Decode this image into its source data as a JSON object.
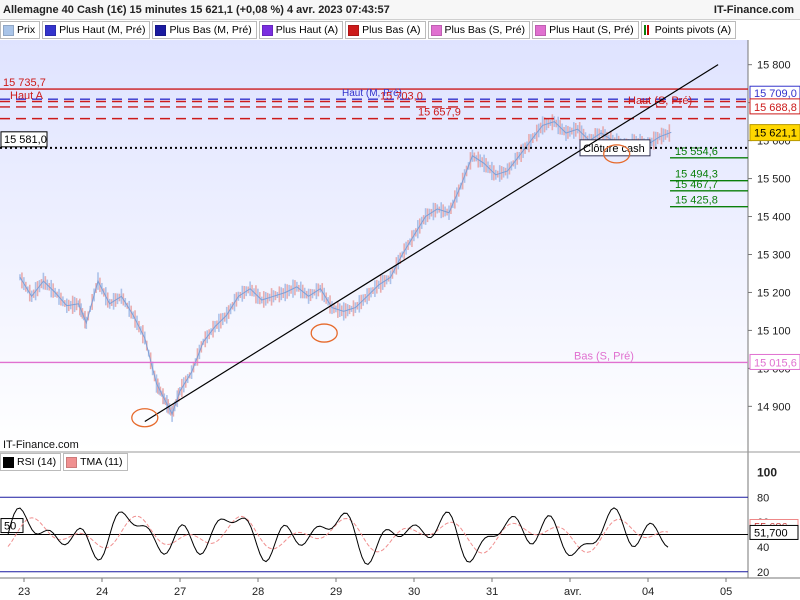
{
  "header": {
    "title": "Allemagne 40 Cash (1€) 15 minutes 15 621,1 (+0,08 %) 4 avr. 2023 07:43:57",
    "brand": "IT-Finance.com"
  },
  "legend": [
    {
      "label": "Prix",
      "color": "#a9c4e8",
      "icon": "price-swatch"
    },
    {
      "label": "Plus Haut (M, Pré)",
      "color": "#3333cc",
      "icon": "color-swatch"
    },
    {
      "label": "Plus Bas (M, Pré)",
      "color": "#1a1aa0",
      "icon": "color-swatch"
    },
    {
      "label": "Plus Haut (A)",
      "color": "#7a2ee0",
      "icon": "color-swatch"
    },
    {
      "label": "Plus Bas (A)",
      "color": "#cc1a1a",
      "icon": "color-swatch"
    },
    {
      "label": "Plus Bas (S, Pré)",
      "color": "#e070d0",
      "icon": "color-swatch"
    },
    {
      "label": "Plus Haut (S, Pré)",
      "color": "#e070d0",
      "icon": "color-swatch"
    },
    {
      "label": "Points pivots (A)",
      "color": "#0a7f0a",
      "icon": "pivot-swatch"
    }
  ],
  "rsi_legend": [
    {
      "label": "RSI (14)",
      "color": "#000000"
    },
    {
      "label": "TMA (11)",
      "color": "#f09090"
    }
  ],
  "watermark": "IT-Finance.com",
  "chart_data": {
    "type": "line",
    "title": "Allemagne 40 Cash (1€) 15 minutes",
    "last_price": 15621.1,
    "change_pct": 0.08,
    "x_ticks": [
      "23",
      "24",
      "27",
      "28",
      "29",
      "30",
      "31",
      "avr.",
      "04",
      "05"
    ],
    "y_ticks": [
      14900,
      15000,
      15100,
      15200,
      15300,
      15400,
      15500,
      15600,
      15700,
      15800
    ],
    "y_tick_labels": [
      "14 900",
      "15 000",
      "15 100",
      "15 200",
      "15 300",
      "15 400",
      "15 500",
      "15 600",
      "15 700",
      "15 800"
    ],
    "ylim": [
      14785,
      15865
    ],
    "grid": false,
    "price_path": [
      [
        0.0,
        15240
      ],
      [
        0.15,
        15190
      ],
      [
        0.3,
        15230
      ],
      [
        0.45,
        15200
      ],
      [
        0.6,
        15165
      ],
      [
        0.75,
        15170
      ],
      [
        0.85,
        15120
      ],
      [
        1.0,
        15230
      ],
      [
        1.15,
        15170
      ],
      [
        1.3,
        15190
      ],
      [
        1.45,
        15140
      ],
      [
        1.6,
        15080
      ],
      [
        1.75,
        14960
      ],
      [
        1.85,
        14920
      ],
      [
        1.95,
        14880
      ],
      [
        2.05,
        14940
      ],
      [
        2.2,
        14990
      ],
      [
        2.35,
        15070
      ],
      [
        2.5,
        15110
      ],
      [
        2.65,
        15140
      ],
      [
        2.8,
        15190
      ],
      [
        2.95,
        15210
      ],
      [
        3.1,
        15180
      ],
      [
        3.25,
        15190
      ],
      [
        3.4,
        15200
      ],
      [
        3.55,
        15215
      ],
      [
        3.7,
        15190
      ],
      [
        3.85,
        15210
      ],
      [
        4.0,
        15160
      ],
      [
        4.15,
        15150
      ],
      [
        4.3,
        15160
      ],
      [
        4.45,
        15190
      ],
      [
        4.6,
        15220
      ],
      [
        4.75,
        15240
      ],
      [
        4.9,
        15300
      ],
      [
        5.05,
        15350
      ],
      [
        5.2,
        15400
      ],
      [
        5.35,
        15420
      ],
      [
        5.5,
        15410
      ],
      [
        5.65,
        15480
      ],
      [
        5.8,
        15560
      ],
      [
        5.95,
        15540
      ],
      [
        6.1,
        15510
      ],
      [
        6.25,
        15520
      ],
      [
        6.4,
        15560
      ],
      [
        6.55,
        15600
      ],
      [
        6.7,
        15640
      ],
      [
        6.85,
        15650
      ],
      [
        7.0,
        15620
      ],
      [
        7.15,
        15630
      ],
      [
        7.3,
        15600
      ],
      [
        7.45,
        15620
      ],
      [
        7.6,
        15600
      ],
      [
        7.75,
        15585
      ],
      [
        7.9,
        15600
      ],
      [
        8.05,
        15590
      ],
      [
        8.2,
        15610
      ],
      [
        8.35,
        15622
      ]
    ],
    "levels": [
      {
        "name": "Haut A",
        "value": 15735.7,
        "label": "15 735,7",
        "color": "#cc1a1a",
        "style": "solid"
      },
      {
        "name": "Haut (M, Pré)",
        "value": 15709.0,
        "label": "15 709,0",
        "color": "#3333cc",
        "style": "dashed"
      },
      {
        "name": "",
        "value": 15703.0,
        "label": "15 703,0",
        "color": "#cc1a1a",
        "style": "dashed"
      },
      {
        "name": "Haut (S, Pré)",
        "value": 15688.8,
        "label": "15 688,8",
        "color": "#cc1a1a",
        "style": "dashed"
      },
      {
        "name": "",
        "value": 15657.9,
        "label": "15 657,9",
        "color": "#cc1a1a",
        "style": "dashed"
      },
      {
        "name": "Clôture cash",
        "value": 15581.0,
        "label": "15 581,0",
        "color": "#000000",
        "style": "dotted"
      },
      {
        "name": "",
        "value": 15554.6,
        "label": "15 554,6",
        "color": "#0a7f0a",
        "style": "solid"
      },
      {
        "name": "",
        "value": 15494.3,
        "label": "15 494,3",
        "color": "#0a7f0a",
        "style": "solid"
      },
      {
        "name": "",
        "value": 15467.7,
        "label": "15 467,7",
        "color": "#0a7f0a",
        "style": "solid"
      },
      {
        "name": "",
        "value": 15425.8,
        "label": "15 425,8",
        "color": "#0a7f0a",
        "style": "solid"
      },
      {
        "name": "Bas (S, Pré)",
        "value": 15015.6,
        "label": "15 015,6",
        "color": "#e070d0",
        "style": "solid"
      }
    ],
    "trendline": [
      [
        1.6,
        14860
      ],
      [
        8.95,
        15800
      ]
    ],
    "highlight_circles": [
      [
        1.6,
        14870
      ],
      [
        3.9,
        15093
      ],
      [
        7.65,
        15565
      ]
    ],
    "current_price_label": "15 621,1",
    "rsi": {
      "y_ticks": [
        20,
        40,
        50,
        60,
        80,
        100
      ],
      "y_tick_labels": [
        "20",
        "40",
        "50",
        "60",
        "80",
        "100"
      ],
      "ylim": [
        15,
        102
      ],
      "levels": [
        80,
        50,
        20
      ],
      "last_rsi": 51.7,
      "last_rsi_label": "51,700",
      "last_tma": 55.686,
      "last_tma_label": "55,686",
      "midline_label": "50"
    }
  }
}
